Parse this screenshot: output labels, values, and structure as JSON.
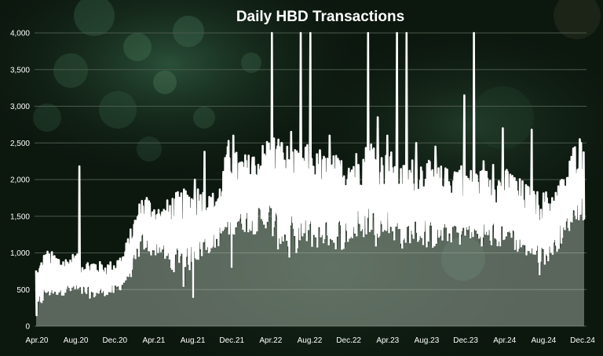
{
  "chart_data": {
    "type": "area",
    "title": "Daily HBD Transactions",
    "xlabel": "",
    "ylabel": "",
    "ylim": [
      0,
      4000
    ],
    "yticks": [
      0,
      500,
      1000,
      1500,
      2000,
      2500,
      3000,
      3500,
      4000
    ],
    "ytick_labels": [
      "0",
      "500",
      "1,000",
      "1,500",
      "2,000",
      "2,500",
      "3,000",
      "3,500",
      "4,000"
    ],
    "xticks": [
      "Apr.20",
      "Aug.20",
      "Dec.20",
      "Apr.21",
      "Aug.21",
      "Dec.21",
      "Apr.22",
      "Aug.22",
      "Dec.22",
      "Apr.23",
      "Aug.23",
      "Dec.23",
      "Apr.24",
      "Aug.24",
      "Dec.24"
    ],
    "grid": true,
    "colors": {
      "line": "#ffffff",
      "fill": "#c9d4c9",
      "grid": "#4a5a4c",
      "background": "#0d1a10"
    },
    "series": [
      {
        "x": [
          "2020-04",
          "2020-05",
          "2020-06",
          "2020-07",
          "2020-08",
          "2020-09",
          "2020-10",
          "2020-11",
          "2020-12",
          "2021-01",
          "2021-02",
          "2021-03",
          "2021-04",
          "2021-05",
          "2021-06",
          "2021-07",
          "2021-08",
          "2021-09",
          "2021-10",
          "2021-11",
          "2021-12",
          "2022-01",
          "2022-02",
          "2022-03",
          "2022-04",
          "2022-05",
          "2022-06",
          "2022-07",
          "2022-08",
          "2022-09",
          "2022-10",
          "2022-11",
          "2022-12",
          "2023-01",
          "2023-02",
          "2023-03",
          "2023-04",
          "2023-05",
          "2023-06",
          "2023-07",
          "2023-08",
          "2023-09",
          "2023-10",
          "2023-11",
          "2023-12",
          "2024-01",
          "2024-02",
          "2024-03",
          "2024-04",
          "2024-05",
          "2024-06",
          "2024-07",
          "2024-08",
          "2024-09",
          "2024-10",
          "2024-11",
          "2024-12"
        ],
        "min": [
          150,
          380,
          420,
          430,
          440,
          400,
          380,
          420,
          420,
          520,
          700,
          1050,
          950,
          1000,
          700,
          850,
          750,
          900,
          1000,
          1100,
          1200,
          1300,
          1280,
          1250,
          1350,
          1050,
          1050,
          1000,
          1100,
          1050,
          1100,
          1050,
          1050,
          1150,
          1200,
          1250,
          1200,
          1200,
          1050,
          1150,
          1100,
          1050,
          1100,
          1150,
          1100,
          1200,
          1100,
          1100,
          1050,
          1150,
          1000,
          950,
          850,
          850,
          1000,
          1200,
          1450
        ],
        "max": [
          760,
          1050,
          1000,
          940,
          1010,
          900,
          920,
          860,
          900,
          1000,
          1400,
          1800,
          1750,
          1600,
          1800,
          1850,
          1900,
          1950,
          1800,
          1900,
          2550,
          2350,
          2350,
          2400,
          2600,
          2650,
          2500,
          2400,
          2500,
          2400,
          2350,
          2350,
          2300,
          2400,
          2450,
          2600,
          2350,
          2400,
          2200,
          2300,
          2300,
          2250,
          2200,
          2150,
          2300,
          2150,
          2150,
          2150,
          2100,
          2150,
          2050,
          1950,
          1850,
          1850,
          1900,
          2100,
          2550
        ],
        "spikes": [
          [
            "2020-08",
            2180
          ],
          [
            "2021-03",
            1750
          ],
          [
            "2021-08",
            2000
          ],
          [
            "2021-09",
            2380
          ],
          [
            "2021-12",
            2600
          ],
          [
            "2022-02",
            2300
          ],
          [
            "2022-04",
            4000
          ],
          [
            "2022-05",
            2500
          ],
          [
            "2022-06",
            2650
          ],
          [
            "2022-07",
            4000
          ],
          [
            "2022-08",
            4000
          ],
          [
            "2022-09",
            2400
          ],
          [
            "2022-10",
            2600
          ],
          [
            "2022-11",
            2200
          ],
          [
            "2022-12",
            2150
          ],
          [
            "2023-01",
            2200
          ],
          [
            "2023-02",
            4000
          ],
          [
            "2023-03",
            2850
          ],
          [
            "2023-04",
            2600
          ],
          [
            "2023-05",
            4000
          ],
          [
            "2023-06",
            4000
          ],
          [
            "2023-07",
            2500
          ],
          [
            "2023-08",
            2000
          ],
          [
            "2023-09",
            2450
          ],
          [
            "2023-10",
            1950
          ],
          [
            "2023-11",
            2100
          ],
          [
            "2023-12",
            3150
          ],
          [
            "2024-01",
            4000
          ],
          [
            "2024-02",
            2250
          ],
          [
            "2024-03",
            2200
          ],
          [
            "2024-04",
            2700
          ],
          [
            "2024-05",
            2050
          ],
          [
            "2024-07",
            2680
          ],
          [
            "2024-10",
            1980
          ],
          [
            "2024-11",
            2050
          ],
          [
            "2024-12",
            2550
          ]
        ],
        "dips": [
          [
            "2021-08",
            400
          ],
          [
            "2021-07",
            550
          ],
          [
            "2021-12",
            810
          ],
          [
            "2024-08",
            710
          ],
          [
            "2022-06",
            950
          ],
          [
            "2023-03",
            1100
          ]
        ]
      }
    ]
  }
}
